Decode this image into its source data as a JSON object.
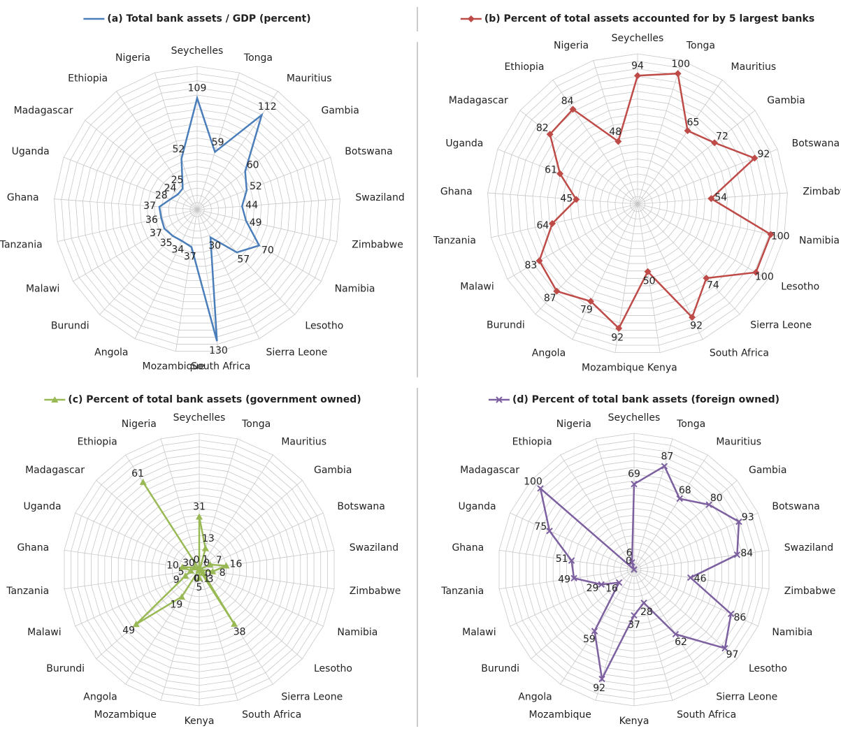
{
  "chart_data": [
    {
      "type": "radar",
      "marker": "none",
      "ylim": [
        0,
        140
      ],
      "categories": [
        "Seychelles",
        "Tonga",
        "Mauritius",
        "Gambia",
        "Botswana",
        "Swaziland",
        "Zimbabwe",
        "Namibia",
        "Lesotho",
        "Sierra Leone",
        "South Africa",
        "Mozambique",
        "Angola",
        "Burundi",
        "Malawi",
        "Tanzania",
        "Ghana",
        "Uganda",
        "Madagascar",
        "Ethiopia",
        "Nigeria"
      ],
      "series": [
        {
          "name": "(a) Total bank assets / GDP (percent)",
          "color": "#4a7ebb",
          "values": [
            109,
            59,
            112,
            60,
            52,
            44,
            49,
            70,
            57,
            30,
            130,
            37,
            34,
            35,
            37,
            36,
            37,
            28,
            24,
            25,
            52
          ]
        }
      ]
    },
    {
      "type": "radar",
      "marker": "diamond",
      "ylim": [
        0,
        110
      ],
      "categories": [
        "Seychelles",
        "Tonga",
        "Mauritius",
        "Gambia",
        "Botswana",
        "Zimbabwe",
        "Namibia",
        "Lesotho",
        "Sierra Leone",
        "South Africa",
        "Kenya",
        "Mozambique",
        "Angola",
        "Burundi",
        "Malawi",
        "Tanzania",
        "Ghana",
        "Uganda",
        "Madagascar",
        "Ethiopia",
        "Nigeria"
      ],
      "series": [
        {
          "name": "(b) Percent of total assets accounted for by 5 largest banks",
          "color": "#be4b48",
          "values": [
            94,
            100,
            65,
            72,
            92,
            54,
            100,
            100,
            74,
            92,
            50,
            92,
            79,
            87,
            83,
            64,
            45,
            61,
            82,
            84,
            48
          ]
        }
      ]
    },
    {
      "type": "radar",
      "marker": "triangle",
      "ylim": [
        0,
        80
      ],
      "categories": [
        "Seychelles",
        "Tonga",
        "Mauritius",
        "Gambia",
        "Botswana",
        "Swaziland",
        "Zimbabwe",
        "Namibia",
        "Lesotho",
        "Sierra Leone",
        "South Africa",
        "Kenya",
        "Mozambique",
        "Angola",
        "Burundi",
        "Malawi",
        "Tanzania",
        "Ghana",
        "Uganda",
        "Madagascar",
        "Ethiopia",
        "Nigeria"
      ],
      "series": [
        {
          "name": "(c) Percent of total bank assets (government owned)",
          "color": "#98b954",
          "values": [
            31,
            13,
            1,
            0,
            7,
            16,
            8,
            0,
            3,
            38,
            0.1,
            5,
            0,
            19,
            49,
            9,
            5,
            10,
            3,
            0,
            61,
            0
          ]
        }
      ]
    },
    {
      "type": "radar",
      "marker": "x",
      "ylim": [
        0,
        110
      ],
      "categories": [
        "Seychelles",
        "Tonga",
        "Mauritius",
        "Gambia",
        "Botswana",
        "Swaziland",
        "Zimbabwe",
        "Namibia",
        "Lesotho",
        "Sierra Leone",
        "South Africa",
        "Kenya",
        "Mozambique",
        "Angola",
        "Burundi",
        "Malawi",
        "Tanzania",
        "Ghana",
        "Uganda",
        "Madagascar",
        "Ethiopia",
        "Nigeria"
      ],
      "series": [
        {
          "name": "(d) Percent of total bank assets (foreign owned)",
          "color": "#7d60a0",
          "values": [
            69,
            87,
            68,
            80,
            93,
            84,
            46,
            86,
            97,
            62,
            28,
            37,
            92,
            59,
            16,
            29,
            49,
            51,
            75,
            100,
            0,
            6
          ]
        }
      ]
    }
  ]
}
